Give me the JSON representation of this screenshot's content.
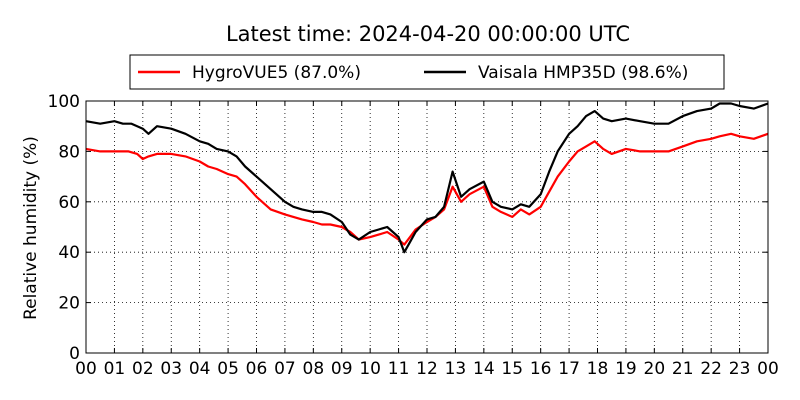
{
  "chart_data": {
    "type": "line",
    "title": "Latest time: 2024-04-20 00:00:00 UTC",
    "xlabel": "",
    "ylabel": "Relative humidity (%)",
    "xlim": [
      0,
      24
    ],
    "ylim": [
      0,
      100
    ],
    "xticks": [
      "00",
      "01",
      "02",
      "03",
      "04",
      "05",
      "06",
      "07",
      "08",
      "09",
      "10",
      "11",
      "12",
      "13",
      "14",
      "15",
      "16",
      "17",
      "18",
      "19",
      "20",
      "21",
      "22",
      "23",
      "00"
    ],
    "yticks": [
      0,
      20,
      40,
      60,
      80,
      100
    ],
    "grid": true,
    "legend_position": "top",
    "series": [
      {
        "name": "HygroVUE5 (87.0%)",
        "color": "#ff0000",
        "x": [
          0,
          0.5,
          1,
          1.5,
          1.8,
          2,
          2.2,
          2.5,
          3,
          3.5,
          4,
          4.3,
          4.6,
          5,
          5.3,
          5.6,
          6,
          6.5,
          7,
          7.3,
          7.6,
          8,
          8.3,
          8.6,
          9,
          9.3,
          9.6,
          10,
          10.3,
          10.6,
          11,
          11.2,
          11.4,
          11.6,
          12,
          12.3,
          12.6,
          12.9,
          13.2,
          13.5,
          14,
          14.3,
          14.6,
          15,
          15.3,
          15.6,
          16,
          16.3,
          16.6,
          17,
          17.3,
          17.6,
          17.9,
          18.2,
          18.5,
          19,
          19.5,
          20,
          20.5,
          21,
          21.5,
          22,
          22.3,
          22.7,
          23,
          23.5,
          24
        ],
        "y": [
          81,
          80,
          80,
          80,
          79,
          77,
          78,
          79,
          79,
          78,
          76,
          74,
          73,
          71,
          70,
          67,
          62,
          57,
          55,
          54,
          53,
          52,
          51,
          51,
          50,
          48,
          45,
          46,
          47,
          48,
          45,
          43,
          46,
          49,
          52,
          54,
          57,
          66,
          60,
          63,
          66,
          58,
          56,
          54,
          57,
          55,
          58,
          64,
          70,
          76,
          80,
          82,
          84,
          81,
          79,
          81,
          80,
          80,
          80,
          82,
          84,
          85,
          86,
          87,
          86,
          85,
          87
        ]
      },
      {
        "name": "Vaisala HMP35D (98.6%)",
        "color": "#000000",
        "x": [
          0,
          0.5,
          1,
          1.3,
          1.6,
          2,
          2.2,
          2.5,
          3,
          3.5,
          4,
          4.3,
          4.6,
          5,
          5.3,
          5.6,
          6,
          6.5,
          7,
          7.3,
          7.6,
          8,
          8.3,
          8.6,
          9,
          9.3,
          9.6,
          10,
          10.3,
          10.6,
          11,
          11.2,
          11.4,
          11.6,
          12,
          12.3,
          12.6,
          12.9,
          13.2,
          13.5,
          14,
          14.3,
          14.6,
          15,
          15.3,
          15.6,
          16,
          16.3,
          16.6,
          17,
          17.3,
          17.6,
          17.9,
          18.2,
          18.5,
          19,
          19.5,
          20,
          20.5,
          21,
          21.5,
          22,
          22.3,
          22.7,
          23,
          23.5,
          24
        ],
        "y": [
          92,
          91,
          92,
          91,
          91,
          89,
          87,
          90,
          89,
          87,
          84,
          83,
          81,
          80,
          78,
          74,
          70,
          65,
          60,
          58,
          57,
          56,
          56,
          55,
          52,
          47,
          45,
          48,
          49,
          50,
          46,
          40,
          44,
          48,
          53,
          54,
          58,
          72,
          62,
          65,
          68,
          60,
          58,
          57,
          59,
          58,
          63,
          72,
          80,
          87,
          90,
          94,
          96,
          93,
          92,
          93,
          92,
          91,
          91,
          94,
          96,
          97,
          99,
          99,
          98,
          97,
          99
        ]
      }
    ]
  }
}
